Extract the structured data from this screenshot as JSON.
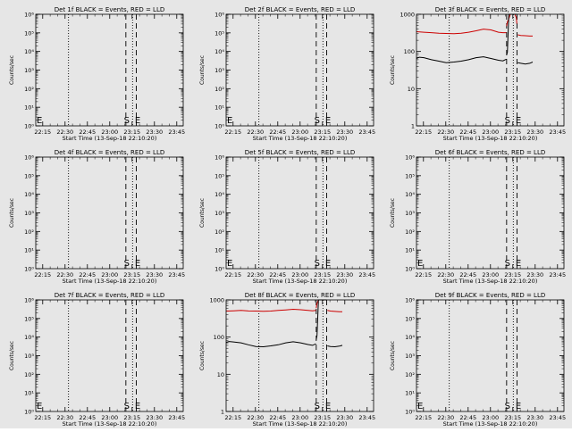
{
  "figure": {
    "background": "#e6e6e6"
  },
  "x_ticks": [
    "22:15",
    "22:30",
    "22:45",
    "23:00",
    "23:15",
    "23:30",
    "23:45"
  ],
  "x_label": "Start Time (13-Sep-18 22:10:20)",
  "y_label": "Counts/sec",
  "marker_e": "E",
  "marker_s": "S",
  "colors": {
    "events": "#000000",
    "lld": "#cc0000"
  },
  "chart_data": [
    {
      "type": "line",
      "title": "Det 1f BLACK = Events, RED = LLD",
      "ylabel": "Counts/sec",
      "ylim": [
        1,
        1000000
      ],
      "ylog": true,
      "yticks": [
        "10⁰",
        "10¹",
        "10²",
        "10³",
        "10⁴",
        "10⁵",
        "10⁶"
      ],
      "dotted_x_min": [
        22.0,
        65.0
      ],
      "dashed_x_min": [
        60.5,
        67.5
      ],
      "markers": [
        {
          "label": "E",
          "x_min": 0.6
        },
        {
          "label": "S",
          "x_min": 59.2
        },
        {
          "label": "E",
          "x_min": 66.5
        }
      ],
      "series": []
    },
    {
      "type": "line",
      "title": "Det 2f BLACK = Events, RED = LLD",
      "ylabel": "Counts/sec",
      "ylim": [
        1,
        1000000
      ],
      "ylog": true,
      "yticks": [
        "10⁰",
        "10¹",
        "10²",
        "10³",
        "10⁴",
        "10⁵",
        "10⁶"
      ],
      "dotted_x_min": [
        22.0,
        65.0
      ],
      "dashed_x_min": [
        60.5,
        67.5
      ],
      "markers": [
        {
          "label": "E",
          "x_min": 0.6
        },
        {
          "label": "S",
          "x_min": 59.2
        },
        {
          "label": "E",
          "x_min": 66.5
        }
      ],
      "series": []
    },
    {
      "type": "line",
      "title": "Det 3f BLACK = Events, RED = LLD",
      "ylabel": "Counts/sec",
      "ylim": [
        1,
        1000
      ],
      "ylog": true,
      "yticks": [
        "1",
        "10",
        "100",
        "1000"
      ],
      "dotted_x_min": [
        22.0,
        65.0
      ],
      "dashed_x_min": [
        60.5,
        67.5
      ],
      "markers": [
        {
          "label": "S",
          "x_min": 59.2
        },
        {
          "label": "E",
          "x_min": 66.5
        }
      ],
      "series": [
        {
          "color": "#cc0000",
          "x": [
            0,
            5,
            10,
            15,
            20,
            25,
            30,
            35,
            40,
            45,
            50,
            55,
            58,
            60.3
          ],
          "y": [
            340,
            330,
            320,
            310,
            305,
            300,
            310,
            330,
            360,
            400,
            380,
            330,
            320,
            320
          ]
        },
        {
          "color": "#cc0000",
          "x": [
            60.5,
            61.0,
            62.0,
            63.0,
            64.0,
            65.0,
            66.0,
            67.0,
            67.4
          ],
          "y": [
            480,
            620,
            760,
            1000,
            1000,
            1000,
            1000,
            820,
            560
          ]
        },
        {
          "color": "#cc0000",
          "x": [
            68,
            70,
            73,
            76,
            78
          ],
          "y": [
            280,
            270,
            265,
            260,
            260
          ]
        },
        {
          "color": "#000000",
          "x": [
            0,
            2,
            5,
            10,
            15,
            20,
            25,
            30,
            35,
            40,
            45,
            50,
            55,
            58,
            60.3
          ],
          "y": [
            65,
            70,
            68,
            60,
            55,
            50,
            52,
            55,
            60,
            68,
            72,
            65,
            58,
            56,
            62
          ]
        },
        {
          "color": "#000000",
          "x": [
            60.5,
            61.0,
            62.0,
            63.0,
            64.0,
            65.0,
            66.0,
            67.0,
            67.4
          ],
          "y": [
            80,
            95,
            1000,
            1000,
            1000,
            1000,
            1000,
            1000,
            1000
          ]
        },
        {
          "color": "#000000",
          "x": [
            68,
            70,
            73,
            76,
            78
          ],
          "y": [
            50,
            48,
            46,
            48,
            52
          ]
        }
      ]
    },
    {
      "type": "line",
      "title": "Det 4f BLACK = Events, RED = LLD",
      "ylabel": "Counts/sec",
      "ylim": [
        1,
        1000000
      ],
      "ylog": true,
      "yticks": [
        "10⁰",
        "10¹",
        "10²",
        "10³",
        "10⁴",
        "10⁵",
        "10⁶"
      ],
      "dotted_x_min": [
        22.0,
        65.0
      ],
      "dashed_x_min": [
        60.5,
        67.5
      ],
      "markers": [
        {
          "label": "S",
          "x_min": 59.2
        },
        {
          "label": "E",
          "x_min": 66.5
        }
      ],
      "series": []
    },
    {
      "type": "line",
      "title": "Det 5f BLACK = Events, RED = LLD",
      "ylabel": "Counts/sec",
      "ylim": [
        1,
        1000000
      ],
      "ylog": true,
      "yticks": [
        "10⁰",
        "10¹",
        "10²",
        "10³",
        "10⁴",
        "10⁵",
        "10⁶"
      ],
      "dotted_x_min": [
        22.0,
        65.0
      ],
      "dashed_x_min": [
        60.5,
        67.5
      ],
      "markers": [
        {
          "label": "E",
          "x_min": 0.6
        },
        {
          "label": "S",
          "x_min": 59.2
        },
        {
          "label": "E",
          "x_min": 66.5
        }
      ],
      "series": []
    },
    {
      "type": "line",
      "title": "Det 6f BLACK = Events, RED = LLD",
      "ylabel": "Counts/sec",
      "ylim": [
        1,
        1000000
      ],
      "ylog": true,
      "yticks": [
        "10⁰",
        "10¹",
        "10²",
        "10³",
        "10⁴",
        "10⁵",
        "10⁶"
      ],
      "dotted_x_min": [
        22.0,
        65.0
      ],
      "dashed_x_min": [
        60.5,
        67.5
      ],
      "markers": [
        {
          "label": "E",
          "x_min": 0.6
        },
        {
          "label": "S",
          "x_min": 59.2
        },
        {
          "label": "E",
          "x_min": 66.5
        }
      ],
      "series": []
    },
    {
      "type": "line",
      "title": "Det 7f BLACK = Events, RED = LLD",
      "ylabel": "Counts/sec",
      "ylim": [
        1,
        1000000
      ],
      "ylog": true,
      "yticks": [
        "10⁰",
        "10¹",
        "10²",
        "10³",
        "10⁴",
        "10⁵",
        "10⁶"
      ],
      "dotted_x_min": [
        22.0,
        65.0
      ],
      "dashed_x_min": [
        60.5,
        67.5
      ],
      "markers": [
        {
          "label": "E",
          "x_min": 0.6
        },
        {
          "label": "S",
          "x_min": 59.2
        },
        {
          "label": "E",
          "x_min": 66.5
        }
      ],
      "series": []
    },
    {
      "type": "line",
      "title": "Det 8f BLACK = Events, RED = LLD",
      "ylabel": "Counts/sec",
      "ylim": [
        1,
        1000
      ],
      "ylog": true,
      "yticks": [
        "1",
        "10",
        "100",
        "1000"
      ],
      "dotted_x_min": [
        22.0,
        65.0
      ],
      "dashed_x_min": [
        60.5,
        67.5
      ],
      "markers": [
        {
          "label": "S",
          "x_min": 59.2
        },
        {
          "label": "E",
          "x_min": 66.5
        }
      ],
      "series": [
        {
          "color": "#cc0000",
          "x": [
            0,
            5,
            10,
            15,
            20,
            25,
            30,
            35,
            40,
            45,
            50,
            55,
            58,
            60.3
          ],
          "y": [
            500,
            510,
            520,
            505,
            500,
            495,
            500,
            520,
            540,
            560,
            545,
            520,
            510,
            520
          ]
        },
        {
          "color": "#cc0000",
          "x": [
            60.5,
            61.0,
            62.0,
            63.0,
            64.0,
            65.0,
            66.0,
            67.0,
            67.4
          ],
          "y": [
            600,
            800,
            1000,
            1000,
            1000,
            1000,
            1000,
            1000,
            1000
          ]
        },
        {
          "color": "#cc0000",
          "x": [
            68,
            70,
            73,
            76,
            78
          ],
          "y": [
            520,
            500,
            490,
            480,
            480
          ]
        },
        {
          "color": "#000000",
          "x": [
            0,
            2,
            5,
            10,
            15,
            20,
            25,
            30,
            35,
            40,
            45,
            50,
            55,
            58,
            60.3
          ],
          "y": [
            72,
            76,
            74,
            70,
            62,
            56,
            55,
            58,
            62,
            70,
            75,
            70,
            63,
            60,
            66
          ]
        },
        {
          "color": "#000000",
          "x": [
            60.5,
            61.0,
            62.0,
            63.0,
            64.0,
            65.0,
            66.0,
            67.0,
            67.4
          ],
          "y": [
            85,
            110,
            1000,
            1000,
            1000,
            1000,
            1000,
            1000,
            1000
          ]
        },
        {
          "color": "#000000",
          "x": [
            68,
            70,
            73,
            76,
            78
          ],
          "y": [
            58,
            56,
            55,
            57,
            60
          ]
        }
      ]
    },
    {
      "type": "line",
      "title": "Det 9f BLACK = Events, RED = LLD",
      "ylabel": "Counts/sec",
      "ylim": [
        1,
        1000000
      ],
      "ylog": true,
      "yticks": [
        "10⁰",
        "10¹",
        "10²",
        "10³",
        "10⁴",
        "10⁵",
        "10⁶"
      ],
      "dotted_x_min": [
        22.0,
        65.0
      ],
      "dashed_x_min": [
        60.5,
        67.5
      ],
      "markers": [
        {
          "label": "E",
          "x_min": 0.6
        },
        {
          "label": "S",
          "x_min": 59.2
        },
        {
          "label": "E",
          "x_min": 66.5
        }
      ],
      "series": []
    }
  ]
}
